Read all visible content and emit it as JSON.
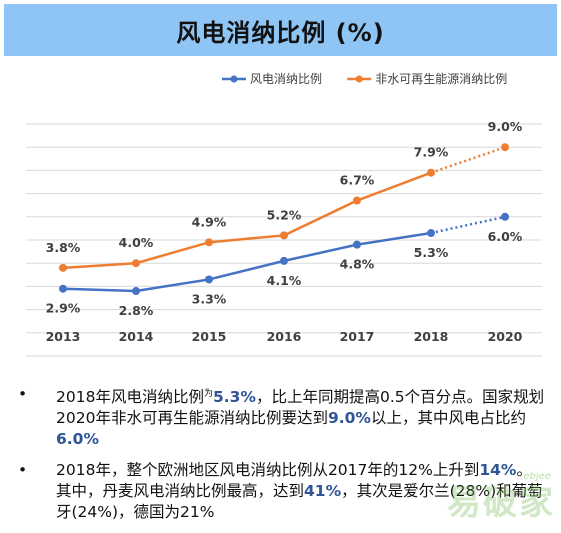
{
  "title": "风电消纳比例 (%)",
  "colors": {
    "wind": "#4472c4",
    "renewable": "#ed7d31",
    "title_bg": "#8ec5f4"
  },
  "chart_data": {
    "type": "line",
    "categories": [
      "2013",
      "2014",
      "2015",
      "2016",
      "2017",
      "2018",
      "2020"
    ],
    "series": [
      {
        "name": "风电消纳比例",
        "values": [
          2.9,
          2.8,
          3.3,
          4.1,
          4.8,
          5.3,
          6.0
        ],
        "labels": [
          "2.9%",
          "2.8%",
          "3.3%",
          "4.1%",
          "4.8%",
          "5.3%",
          "6.0%"
        ],
        "projected_from_index": 5
      },
      {
        "name": "非水可再生能源消纳比例",
        "values": [
          3.8,
          4.0,
          4.9,
          5.2,
          6.7,
          7.9,
          9.0
        ],
        "labels": [
          "3.8%",
          "4.0%",
          "4.9%",
          "5.2%",
          "6.7%",
          "7.9%",
          "9.0%"
        ],
        "projected_from_index": 5
      }
    ],
    "ylim": [
      0,
      10
    ],
    "grid": true,
    "legend": "top-right"
  },
  "notes": [
    {
      "parts": [
        "2018年风电消纳比例",
        "为",
        "5.3%",
        "，比上年同期提高0.5个百分点。国家规划2020年非水可再生能源消纳比例要达到",
        "9.0%",
        "以上，其中风电占比约",
        "6.0%"
      ]
    },
    {
      "parts": [
        "2018年，整个欧洲地区风电消纳比例从2017年的12%上升到",
        "14%",
        "。其中，丹麦风电消纳比例最高，达到",
        "41%",
        "，其次是爱尔兰(28%)和葡萄牙(24%)，德国为21%"
      ]
    }
  ],
  "watermark": "易破家",
  "watermark_sub": "ebjee"
}
